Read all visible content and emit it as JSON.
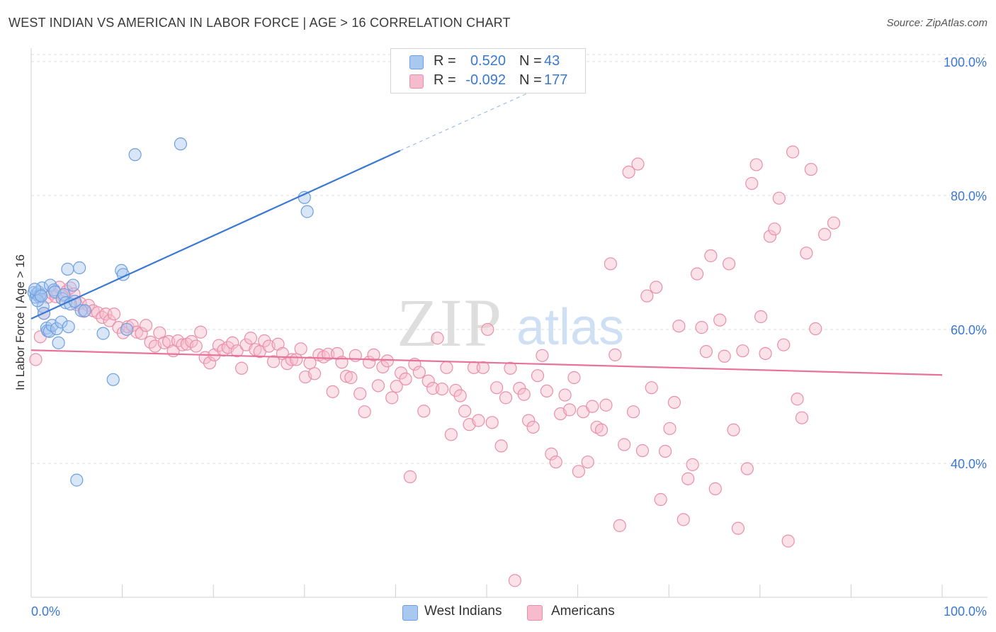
{
  "title": "WEST INDIAN VS AMERICAN IN LABOR FORCE | AGE > 16 CORRELATION CHART",
  "source": "Source: ZipAtlas.com",
  "watermark": {
    "zip": "ZIP",
    "atlas": "atlas"
  },
  "legend": {
    "rows": [
      {
        "r_label": "R =",
        "r_value": "0.520",
        "n_label": "N =",
        "n_value": "43",
        "color": "#a9c8f0",
        "stroke": "#6e9fe0"
      },
      {
        "r_label": "R =",
        "r_value": "-0.092",
        "n_label": "N =",
        "n_value": "177",
        "color": "#f6bccd",
        "stroke": "#e98fab"
      }
    ]
  },
  "bottom_legend": [
    {
      "label": "West Indians",
      "color": "#a9c8f0",
      "stroke": "#6e9fe0"
    },
    {
      "label": "Americans",
      "color": "#f6bccd",
      "stroke": "#e98fab"
    }
  ],
  "chart_data": {
    "type": "scatter",
    "title": "WEST INDIAN VS AMERICAN IN LABOR FORCE | AGE > 16 CORRELATION CHART",
    "xlabel": "",
    "ylabel": "In Labor Force | Age > 16",
    "xlim": [
      0,
      100
    ],
    "ylim": [
      20,
      102
    ],
    "x_tick_labels": [
      "0.0%",
      "100.0%"
    ],
    "y_ticks": [
      40,
      60,
      80,
      100
    ],
    "y_tick_labels": [
      "40.0%",
      "60.0%",
      "80.0%",
      "100.0%"
    ],
    "colors": {
      "west_indians": "#3a78d4",
      "americans": "#e8729a",
      "axis_text": "#3a78d4"
    },
    "series": [
      {
        "name": "West Indians",
        "r": 0.52,
        "n": 43,
        "trend": {
          "x0": 0,
          "y0": 61.6,
          "x1": 40.5,
          "y1": 86.7,
          "dash_to_x": 56.5,
          "dash_to_y": 96.5
        },
        "points": [
          [
            0.3,
            65.5
          ],
          [
            0.5,
            64.8
          ],
          [
            0.6,
            65.3
          ],
          [
            0.8,
            65.6
          ],
          [
            0.9,
            64.9
          ],
          [
            1.0,
            65.2
          ],
          [
            1.2,
            66.2
          ],
          [
            1.3,
            63.4
          ],
          [
            1.4,
            62.4
          ],
          [
            1.7,
            60.2
          ],
          [
            1.8,
            59.8
          ],
          [
            2.0,
            59.7
          ],
          [
            2.1,
            66.6
          ],
          [
            2.3,
            60.6
          ],
          [
            2.5,
            65.9
          ],
          [
            2.6,
            65.6
          ],
          [
            2.8,
            60.1
          ],
          [
            3.0,
            58.0
          ],
          [
            3.3,
            61.1
          ],
          [
            3.4,
            64.6
          ],
          [
            3.6,
            65.2
          ],
          [
            3.8,
            64.0
          ],
          [
            4.0,
            69.0
          ],
          [
            4.1,
            60.4
          ],
          [
            4.3,
            63.8
          ],
          [
            4.6,
            66.6
          ],
          [
            4.8,
            64.2
          ],
          [
            5.0,
            37.5
          ],
          [
            5.3,
            69.2
          ],
          [
            5.5,
            62.8
          ],
          [
            5.9,
            62.8
          ],
          [
            7.9,
            59.4
          ],
          [
            9.0,
            52.5
          ],
          [
            9.9,
            68.8
          ],
          [
            10.1,
            68.2
          ],
          [
            10.5,
            60.0
          ],
          [
            11.4,
            86.1
          ],
          [
            16.4,
            87.7
          ],
          [
            30.0,
            79.7
          ],
          [
            30.3,
            77.6
          ],
          [
            0.4,
            66.0
          ],
          [
            0.7,
            64.3
          ],
          [
            1.1,
            65.0
          ]
        ]
      },
      {
        "name": "Americans",
        "r": -0.092,
        "n": 177,
        "trend": {
          "x0": 0,
          "y0": 56.9,
          "x1": 100,
          "y1": 53.2
        },
        "points": [
          [
            0.5,
            55.5
          ],
          [
            1.0,
            58.9
          ],
          [
            1.4,
            62.4
          ],
          [
            1.8,
            64.8
          ],
          [
            2.3,
            65.4
          ],
          [
            2.7,
            64.9
          ],
          [
            3.1,
            66.3
          ],
          [
            3.5,
            65.0
          ],
          [
            3.9,
            65.7
          ],
          [
            4.3,
            66.2
          ],
          [
            4.7,
            65.3
          ],
          [
            5.0,
            63.7
          ],
          [
            5.4,
            63.9
          ],
          [
            5.8,
            62.7
          ],
          [
            6.3,
            63.6
          ],
          [
            6.8,
            62.8
          ],
          [
            7.3,
            62.5
          ],
          [
            7.8,
            61.8
          ],
          [
            8.2,
            62.3
          ],
          [
            8.6,
            61.3
          ],
          [
            9.1,
            62.3
          ],
          [
            9.6,
            60.3
          ],
          [
            10.1,
            59.5
          ],
          [
            10.6,
            60.4
          ],
          [
            11.1,
            60.6
          ],
          [
            11.6,
            59.6
          ],
          [
            12.1,
            59.4
          ],
          [
            12.6,
            60.6
          ],
          [
            13.1,
            58.1
          ],
          [
            13.6,
            57.5
          ],
          [
            14.1,
            59.5
          ],
          [
            14.6,
            58.0
          ],
          [
            15.1,
            58.2
          ],
          [
            15.6,
            56.8
          ],
          [
            16.1,
            58.3
          ],
          [
            16.6,
            57.7
          ],
          [
            17.1,
            57.8
          ],
          [
            17.6,
            58.2
          ],
          [
            18.1,
            57.5
          ],
          [
            18.6,
            59.6
          ],
          [
            19.1,
            55.8
          ],
          [
            19.6,
            55.0
          ],
          [
            20.1,
            56.2
          ],
          [
            20.6,
            57.6
          ],
          [
            21.1,
            56.9
          ],
          [
            21.6,
            57.3
          ],
          [
            22.1,
            58.0
          ],
          [
            22.6,
            56.8
          ],
          [
            23.1,
            54.2
          ],
          [
            23.6,
            57.7
          ],
          [
            24.1,
            58.7
          ],
          [
            24.6,
            57.0
          ],
          [
            25.1,
            56.7
          ],
          [
            25.6,
            58.3
          ],
          [
            26.1,
            57.5
          ],
          [
            26.6,
            55.2
          ],
          [
            27.1,
            57.8
          ],
          [
            27.6,
            56.4
          ],
          [
            28.1,
            54.9
          ],
          [
            28.6,
            55.5
          ],
          [
            29.1,
            55.5
          ],
          [
            29.6,
            57.1
          ],
          [
            30.1,
            52.9
          ],
          [
            30.6,
            55.0
          ],
          [
            31.1,
            53.4
          ],
          [
            31.6,
            56.2
          ],
          [
            32.1,
            55.9
          ],
          [
            32.6,
            56.3
          ],
          [
            33.1,
            50.7
          ],
          [
            33.6,
            56.4
          ],
          [
            34.1,
            55.1
          ],
          [
            34.6,
            53.0
          ],
          [
            35.1,
            52.8
          ],
          [
            35.6,
            56.1
          ],
          [
            36.1,
            50.4
          ],
          [
            36.6,
            47.7
          ],
          [
            37.1,
            55.1
          ],
          [
            37.6,
            56.2
          ],
          [
            38.1,
            51.6
          ],
          [
            38.6,
            54.4
          ],
          [
            39.1,
            55.3
          ],
          [
            39.6,
            49.8
          ],
          [
            40.1,
            51.5
          ],
          [
            40.6,
            53.5
          ],
          [
            41.1,
            52.6
          ],
          [
            41.6,
            38.0
          ],
          [
            42.1,
            54.8
          ],
          [
            42.6,
            53.6
          ],
          [
            43.1,
            47.8
          ],
          [
            43.6,
            52.3
          ],
          [
            44.1,
            51.2
          ],
          [
            44.6,
            58.7
          ],
          [
            45.1,
            51.1
          ],
          [
            45.6,
            54.3
          ],
          [
            46.1,
            44.3
          ],
          [
            46.6,
            50.9
          ],
          [
            47.1,
            50.1
          ],
          [
            47.6,
            47.8
          ],
          [
            48.1,
            45.8
          ],
          [
            48.6,
            54.3
          ],
          [
            49.1,
            46.4
          ],
          [
            49.6,
            54.3
          ],
          [
            50.1,
            60.0
          ],
          [
            50.6,
            46.1
          ],
          [
            51.1,
            51.3
          ],
          [
            51.6,
            42.6
          ],
          [
            52.1,
            49.8
          ],
          [
            52.6,
            54.2
          ],
          [
            53.1,
            22.5
          ],
          [
            53.6,
            51.2
          ],
          [
            54.1,
            50.3
          ],
          [
            54.6,
            46.4
          ],
          [
            55.1,
            45.4
          ],
          [
            55.6,
            53.1
          ],
          [
            56.1,
            56.1
          ],
          [
            56.6,
            50.8
          ],
          [
            57.1,
            41.4
          ],
          [
            57.6,
            40.2
          ],
          [
            58.1,
            47.4
          ],
          [
            58.6,
            50.2
          ],
          [
            59.1,
            48.0
          ],
          [
            59.6,
            52.8
          ],
          [
            60.1,
            38.8
          ],
          [
            60.6,
            47.7
          ],
          [
            61.1,
            40.2
          ],
          [
            61.6,
            48.5
          ],
          [
            62.1,
            45.4
          ],
          [
            62.6,
            45.0
          ],
          [
            63.1,
            48.7
          ],
          [
            63.6,
            69.8
          ],
          [
            64.1,
            56.2
          ],
          [
            64.6,
            30.7
          ],
          [
            65.1,
            42.8
          ],
          [
            65.6,
            83.5
          ],
          [
            66.1,
            47.7
          ],
          [
            66.6,
            84.7
          ],
          [
            67.1,
            41.9
          ],
          [
            67.6,
            65.0
          ],
          [
            68.1,
            51.3
          ],
          [
            68.6,
            66.3
          ],
          [
            69.1,
            34.6
          ],
          [
            69.6,
            41.8
          ],
          [
            70.1,
            45.2
          ],
          [
            70.6,
            49.1
          ],
          [
            71.1,
            60.5
          ],
          [
            71.6,
            31.6
          ],
          [
            72.1,
            37.7
          ],
          [
            72.6,
            39.8
          ],
          [
            73.1,
            68.3
          ],
          [
            73.6,
            60.3
          ],
          [
            74.1,
            56.7
          ],
          [
            74.6,
            71.0
          ],
          [
            75.1,
            36.2
          ],
          [
            75.6,
            61.4
          ],
          [
            76.1,
            56.0
          ],
          [
            76.6,
            69.8
          ],
          [
            77.1,
            45.0
          ],
          [
            77.6,
            30.3
          ],
          [
            78.1,
            56.8
          ],
          [
            78.6,
            39.2
          ],
          [
            79.1,
            81.8
          ],
          [
            79.6,
            84.6
          ],
          [
            80.1,
            61.9
          ],
          [
            80.6,
            56.4
          ],
          [
            81.1,
            73.9
          ],
          [
            81.6,
            75.0
          ],
          [
            82.1,
            79.6
          ],
          [
            82.6,
            57.7
          ],
          [
            83.1,
            28.4
          ],
          [
            83.6,
            86.5
          ],
          [
            84.1,
            49.6
          ],
          [
            84.6,
            46.8
          ],
          [
            85.1,
            71.4
          ],
          [
            85.6,
            83.9
          ],
          [
            86.1,
            60.1
          ],
          [
            87.1,
            74.2
          ],
          [
            88.1,
            75.9
          ]
        ]
      }
    ]
  }
}
